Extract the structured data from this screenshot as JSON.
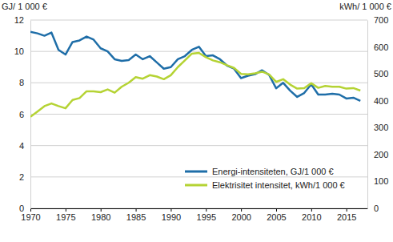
{
  "chart_data": {
    "type": "line",
    "y_label": "GJ/ 1 000 €",
    "y2_label": "kWh/ 1 000 €",
    "x": [
      1970,
      1971,
      1972,
      1973,
      1974,
      1975,
      1976,
      1977,
      1978,
      1979,
      1980,
      1981,
      1982,
      1983,
      1984,
      1985,
      1986,
      1987,
      1988,
      1989,
      1990,
      1991,
      1992,
      1993,
      1994,
      1995,
      1996,
      1997,
      1998,
      1999,
      2000,
      2001,
      2002,
      2003,
      2004,
      2005,
      2006,
      2007,
      2008,
      2009,
      2010,
      2011,
      2012,
      2013,
      2014,
      2015,
      2016,
      2017
    ],
    "series": [
      {
        "name": "Energi-intensiteten, GJ/1 000 €",
        "color": "#1f6ea8",
        "values": [
          11.25,
          11.15,
          11.0,
          11.2,
          10.1,
          9.8,
          10.6,
          10.7,
          10.95,
          10.75,
          10.2,
          10.0,
          9.5,
          9.4,
          9.45,
          9.8,
          9.5,
          9.7,
          9.3,
          8.9,
          9.0,
          9.5,
          9.7,
          10.1,
          10.3,
          9.7,
          9.75,
          9.5,
          9.1,
          8.9,
          8.3,
          8.45,
          8.55,
          8.8,
          8.5,
          7.65,
          8.0,
          7.5,
          7.1,
          7.35,
          7.9,
          7.25,
          7.25,
          7.3,
          7.25,
          7.0,
          7.05,
          6.85
        ]
      },
      {
        "name": "Elektrisitet intensitet, kWh/1 000 €",
        "color": "#b5d334",
        "axis": "y2",
        "values": [
          340,
          360,
          380,
          390,
          380,
          372,
          403,
          410,
          435,
          435,
          432,
          442,
          430,
          452,
          467,
          488,
          482,
          495,
          490,
          480,
          495,
          525,
          550,
          575,
          578,
          562,
          550,
          543,
          532,
          522,
          500,
          498,
          502,
          508,
          498,
          470,
          480,
          460,
          445,
          447,
          465,
          448,
          455,
          452,
          452,
          445,
          447,
          438
        ]
      }
    ],
    "xlim": [
      1970,
      2018
    ],
    "xticks": [
      1970,
      1975,
      1980,
      1985,
      1990,
      1995,
      2000,
      2005,
      2010,
      2015
    ],
    "ylim": [
      0,
      12
    ],
    "yticks": [
      0,
      2,
      4,
      6,
      8,
      10,
      12
    ],
    "y2lim": [
      0,
      700
    ],
    "y2ticks": [
      0,
      100,
      200,
      300,
      400,
      500,
      600,
      700
    ],
    "grid": true,
    "legend": "lower right"
  }
}
